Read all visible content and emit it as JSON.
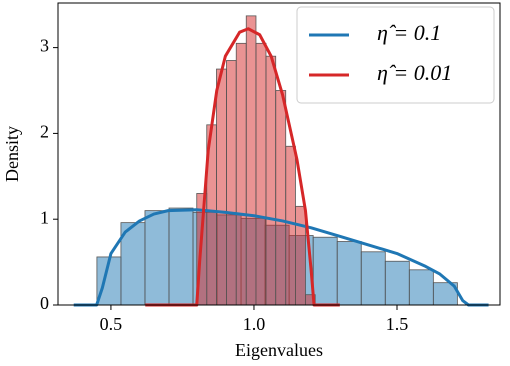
{
  "chart_data": {
    "type": "histogram",
    "xlabel": "Eigenvalues",
    "ylabel": "Density",
    "xlim": [
      0.315,
      1.86
    ],
    "ylim": [
      0,
      3.52
    ],
    "xticks": [
      0.5,
      {
        "value": 1,
        "label": "1.0"
      },
      1.5
    ],
    "yticks": [
      0,
      1,
      2,
      3
    ],
    "legend": "upper right",
    "series": [
      {
        "name": "η̂ = 0.1",
        "color": "#1f77b4",
        "bins": [
          0.451,
          0.535,
          0.619,
          0.703,
          0.787,
          0.871,
          0.955,
          1.039,
          1.123,
          1.207,
          1.291,
          1.375,
          1.459,
          1.543,
          1.627,
          1.711
        ],
        "counts": [
          0.56,
          0.96,
          1.1,
          1.13,
          1.08,
          1.05,
          1.01,
          0.93,
          0.81,
          0.79,
          0.74,
          0.62,
          0.51,
          0.41,
          0.26
        ],
        "kde_x": [
          0.37,
          0.45,
          0.47,
          0.5,
          0.55,
          0.6,
          0.65,
          0.7,
          0.8,
          0.9,
          1.0,
          1.1,
          1.2,
          1.3,
          1.4,
          1.5,
          1.6,
          1.65,
          1.7,
          1.73,
          1.75,
          1.82
        ],
        "kde_y": [
          0,
          0,
          0.2,
          0.6,
          0.85,
          0.98,
          1.06,
          1.1,
          1.11,
          1.08,
          1.04,
          0.98,
          0.9,
          0.8,
          0.7,
          0.6,
          0.45,
          0.36,
          0.22,
          0.05,
          0,
          0
        ]
      },
      {
        "name": "η̂ = 0.01",
        "color": "#d62728",
        "bins": [
          0.8,
          0.835,
          0.869,
          0.904,
          0.938,
          0.973,
          1.007,
          1.042,
          1.076,
          1.111,
          1.145,
          1.18,
          1.214
        ],
        "counts": [
          1.3,
          2.1,
          2.75,
          2.85,
          3.05,
          3.37,
          3.05,
          2.9,
          2.5,
          1.85,
          1.15,
          0.12
        ],
        "kde_x": [
          0.62,
          0.8,
          0.81,
          0.84,
          0.87,
          0.9,
          0.95,
          0.98,
          1.02,
          1.06,
          1.1,
          1.15,
          1.18,
          1.2,
          1.21,
          1.3
        ],
        "kde_y": [
          0,
          0,
          0.5,
          1.8,
          2.5,
          2.9,
          3.18,
          3.22,
          3.15,
          2.9,
          2.45,
          1.7,
          1.1,
          0.4,
          0,
          0
        ]
      }
    ]
  }
}
